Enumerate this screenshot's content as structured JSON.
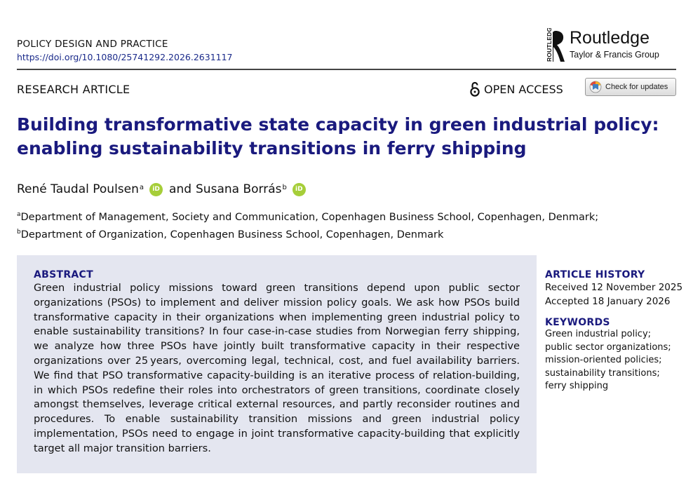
{
  "header": {
    "journal": "POLICY DESIGN AND PRACTICE",
    "doi": "https://doi.org/10.1080/25741292.2026.2631117",
    "publisher": {
      "vertical_mark": "ROUTLEDGE",
      "name": "Routledge",
      "group": "Taylor & Francis Group"
    }
  },
  "article_type": "RESEARCH ARTICLE",
  "open_access_label": "OPEN ACCESS",
  "check_updates_label": "Check for updates",
  "title": "Building transformative state capacity in green industrial policy: enabling sustainability transitions in ferry shipping",
  "authors": [
    {
      "name": "René Taudal Poulsen",
      "affiliation": "a"
    },
    {
      "name": "Susana Borrás",
      "affiliation": "b"
    }
  ],
  "author_separator": "and",
  "orcid_label": "iD",
  "affiliations": [
    {
      "mark": "a",
      "text": "Department of Management, Society and Communication, Copenhagen Business School, Copenhagen, Denmark;"
    },
    {
      "mark": "b",
      "text": "Department of Organization, Copenhagen Business School, Copenhagen, Denmark"
    }
  ],
  "abstract": {
    "heading": "ABSTRACT",
    "text": "Green industrial policy missions toward green transitions depend upon public sector organizations (PSOs) to implement and deliver mission policy goals. We ask how PSOs build transformative capacity in their organizations when implementing green industrial policy to enable sustainability transitions? In four case-in-case studies from Norwegian ferry shipping, we analyze how three PSOs have jointly built transformative capacity in their respective organizations over 25 years, overcoming legal, technical, cost, and fuel availability barriers. We find that PSO transformative capacity-building is an iterative process of relation-building, in which PSOs redefine their roles into orchestrators of green transitions, coordinate closely amongst themselves, leverage critical external resources, and partly reconsider routines and procedures. To enable sustainability transition missions and green industrial policy implementation, PSOs need to engage in joint transformative capacity-building that explicitly target all major transition barriers."
  },
  "article_history": {
    "heading": "ARTICLE HISTORY",
    "received": "Received 12 November 2025",
    "accepted": "Accepted 18 January 2026"
  },
  "keywords": {
    "heading": "KEYWORDS",
    "items": [
      "Green industrial policy;",
      "public sector organizations;",
      "mission-oriented policies;",
      "sustainability transitions;",
      "ferry shipping"
    ]
  },
  "colors": {
    "title_blue": "#1a1a7e",
    "abstract_bg": "#e4e6f0",
    "orcid_green": "#a6ce39",
    "doi_link": "#1a2a8a"
  }
}
